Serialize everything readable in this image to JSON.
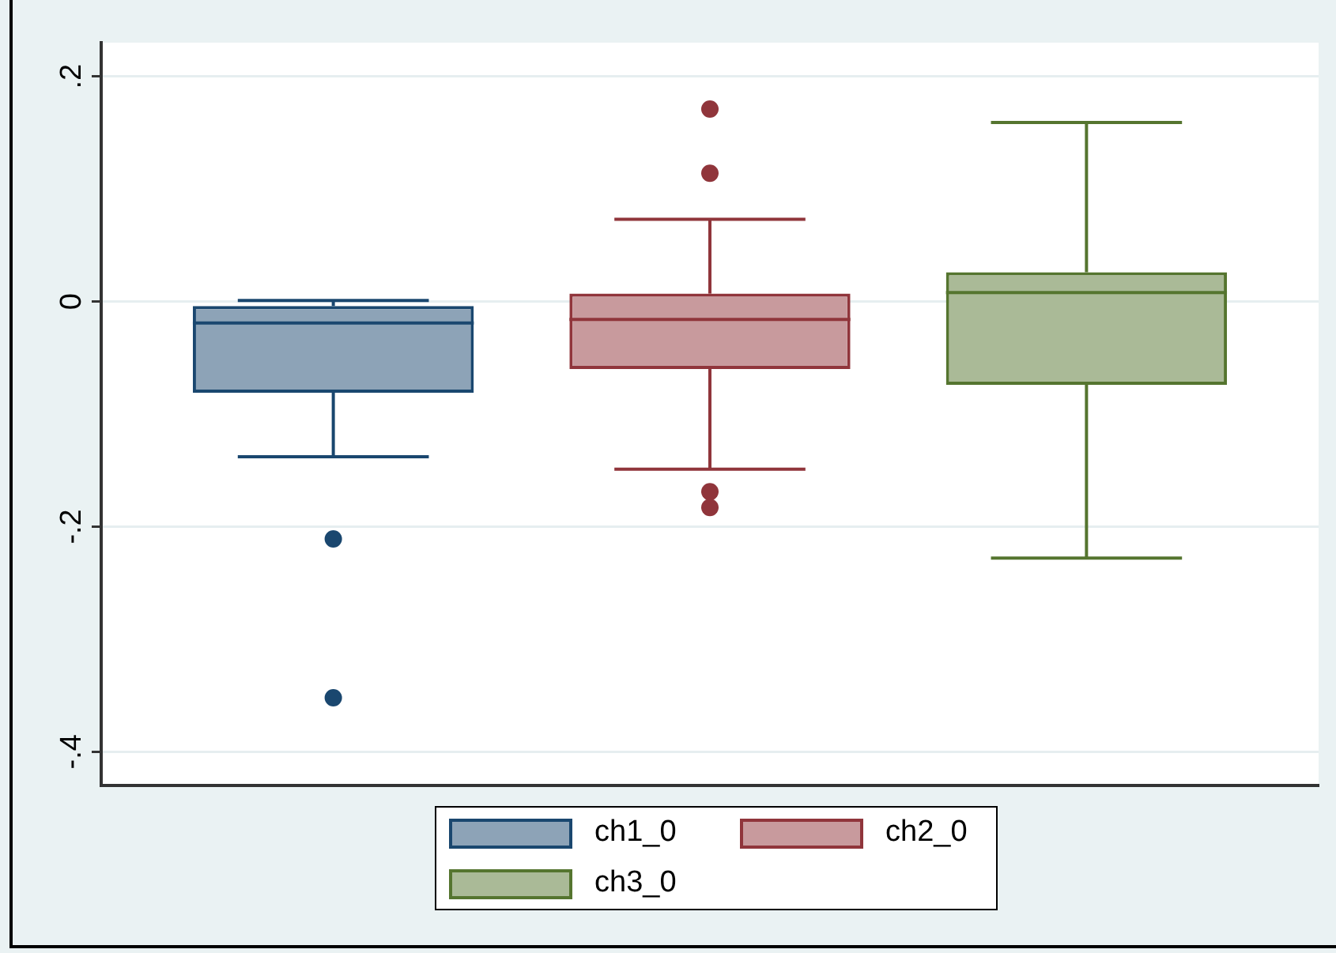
{
  "chart_data": {
    "type": "box",
    "categories": [
      null
    ],
    "series": [
      {
        "name": "ch1_0",
        "color": "#1a476f",
        "boxes": [
          {
            "low": -0.138,
            "q1": -0.081,
            "median": -0.019,
            "q3": -0.004,
            "high": 0.001,
            "outliers": [
              -0.211,
              -0.352
            ]
          }
        ]
      },
      {
        "name": "ch2_0",
        "color": "#90353b",
        "boxes": [
          {
            "low": -0.149,
            "q1": -0.06,
            "median": -0.016,
            "q3": 0.007,
            "high": 0.073,
            "outliers": [
              0.171,
              0.114,
              -0.169,
              -0.183
            ]
          }
        ]
      },
      {
        "name": "ch3_0",
        "color": "#55752f",
        "boxes": [
          {
            "low": -0.228,
            "q1": -0.074,
            "median": 0.008,
            "q3": 0.026,
            "high": 0.159
          }
        ]
      }
    ],
    "ylim": [
      -0.43,
      0.23
    ],
    "yticks": [
      {
        "value": -0.4,
        "label": "-.4"
      },
      {
        "value": -0.2,
        "label": "-.2"
      },
      0,
      {
        "value": 0.2,
        "label": ".2"
      }
    ],
    "grid": "y",
    "legend": "bottom",
    "marker": "circle"
  }
}
